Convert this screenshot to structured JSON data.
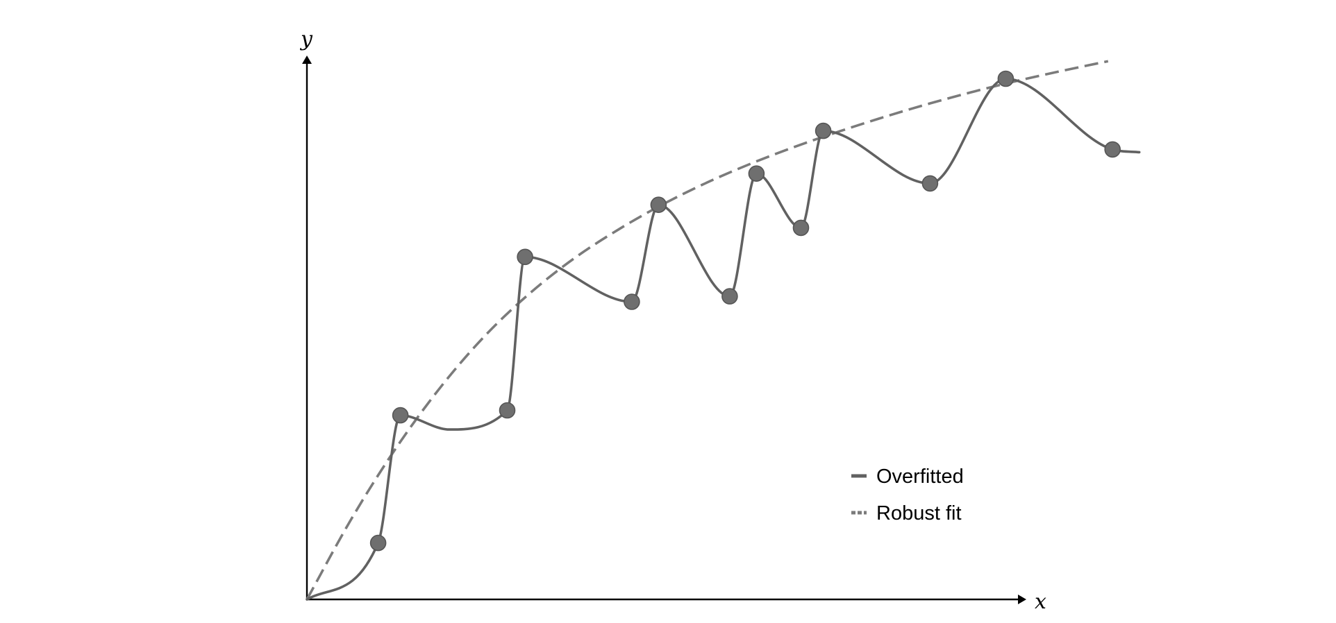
{
  "chart_data": {
    "type": "line",
    "title": "",
    "xlabel": "x",
    "ylabel": "y",
    "xlim": [
      0,
      100
    ],
    "ylim": [
      0,
      100
    ],
    "grid": false,
    "legend": {
      "placement": "bottom-right",
      "entries": [
        "Overfitted",
        "Robust fit"
      ]
    },
    "points": {
      "x": [
        8,
        10.5,
        22.5,
        24.5,
        36.5,
        39.5,
        47.5,
        50.5,
        55.5,
        58,
        70,
        78.5,
        90.5
      ],
      "y": [
        10.3,
        33.6,
        34.5,
        62.5,
        54.3,
        72,
        55.3,
        77.7,
        67.8,
        85.5,
        75.9,
        95,
        82.1
      ]
    },
    "series": [
      {
        "name": "Overfitted",
        "style": "solid",
        "color": "#616161",
        "x": [
          0,
          8,
          10.5,
          16,
          22.5,
          24.5,
          36.5,
          39.5,
          47.5,
          50.5,
          55.5,
          58,
          70,
          78.5,
          90.5,
          93.5
        ],
        "y": [
          0,
          10.3,
          33.6,
          31,
          34.5,
          62.5,
          54.3,
          72,
          55.3,
          77.7,
          67.8,
          85.5,
          75.9,
          95,
          82.1,
          81.6
        ]
      },
      {
        "name": "Robust fit",
        "style": "dashed",
        "color": "#7b7b7b",
        "x": [
          0,
          5,
          10,
          15,
          20,
          25,
          30,
          35,
          40,
          45,
          50,
          55,
          60,
          65,
          70,
          75,
          80,
          85,
          90
        ],
        "y": [
          0,
          14.7,
          27.6,
          38.7,
          48.1,
          55.8,
          62.2,
          67.5,
          72.1,
          76.1,
          79.6,
          82.7,
          85.5,
          88.1,
          90.5,
          92.7,
          94.7,
          96.5,
          98.2
        ]
      }
    ],
    "colors": {
      "overfitted": "#616161",
      "robust": "#7b7b7b",
      "point_fill": "#6f6f6f",
      "axis": "#000000"
    }
  }
}
